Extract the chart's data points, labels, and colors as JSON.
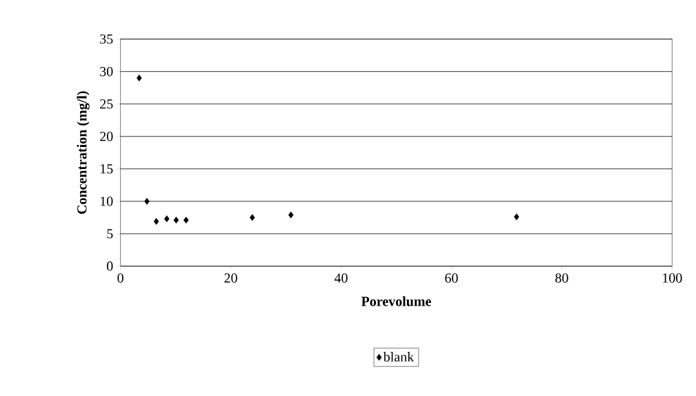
{
  "chart_data": {
    "type": "scatter",
    "xlabel": "Porevolume",
    "ylabel": "Concentration (mg/l)",
    "x": [
      3.4,
      4.8,
      6.5,
      8.4,
      10.1,
      11.9,
      23.9,
      30.9,
      71.8
    ],
    "series": [
      {
        "name": "blank",
        "color": "#000000",
        "values": [
          29.0,
          10.0,
          6.9,
          7.3,
          7.1,
          7.1,
          7.5,
          7.9,
          7.6
        ]
      }
    ],
    "xlim": [
      0,
      100
    ],
    "ylim": [
      0,
      35
    ],
    "xticks": [
      0,
      20,
      40,
      60,
      80,
      100
    ],
    "yticks": [
      0,
      5,
      10,
      15,
      20,
      25,
      30,
      35
    ],
    "grid": "y",
    "legend": "bottom",
    "marker": "diamond"
  }
}
